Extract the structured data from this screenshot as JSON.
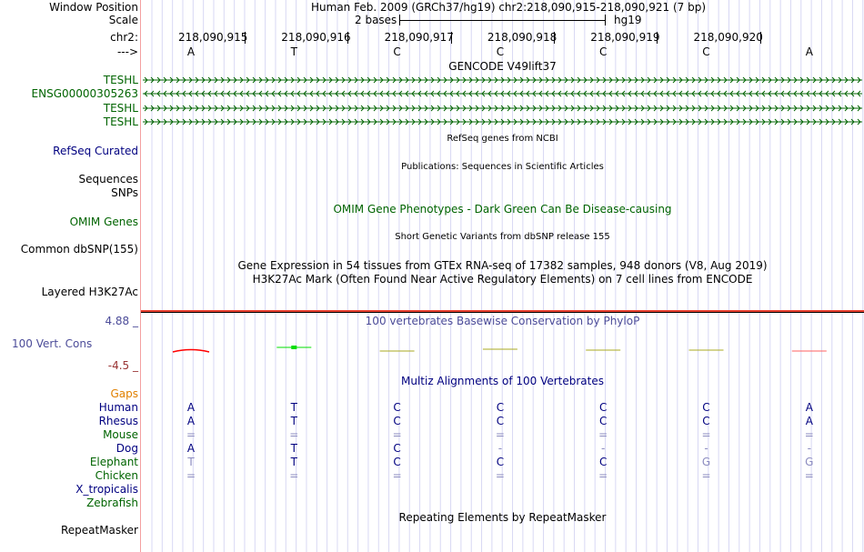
{
  "labels": {
    "window_position": "Window Position",
    "scale": "Scale",
    "chrom": "chr2:",
    "strand": "--->",
    "genes": [
      "TESHL",
      "ENSG00000305263",
      "TESHL",
      "TESHL"
    ],
    "refseq": "RefSeq Curated",
    "sequences": "Sequences",
    "snps": "SNPs",
    "omim": "OMIM Genes",
    "dbsnp": "Common dbSNP(155)",
    "h3k27ac": "Layered H3K27Ac",
    "cons_max": "4.88 _",
    "cons": "100 Vert. Cons",
    "cons_min": "-4.5 _",
    "gaps": "Gaps",
    "species": [
      "Human",
      "Rhesus",
      "Mouse",
      "Dog",
      "Elephant",
      "Chicken",
      "X_tropicalis",
      "Zebrafish"
    ],
    "repeatmasker": "RepeatMasker"
  },
  "header": {
    "title": "Human Feb. 2009 (GRCh37/hg19)   chr2:218,090,915-218,090,921 (7 bp)",
    "scale_text": "2 bases",
    "assembly": "hg19",
    "positions": [
      "218,090,915",
      "218,090,916",
      "218,090,917",
      "218,090,918",
      "218,090,919",
      "218,090,920"
    ],
    "bases": [
      "A",
      "T",
      "C",
      "C",
      "C",
      "C",
      "A"
    ]
  },
  "tracks": {
    "gencode": "GENCODE V49lift37",
    "refseq": "RefSeq genes from NCBI",
    "publications": "Publications: Sequences in Scientific Articles",
    "omim": "OMIM Gene Phenotypes - Dark Green Can Be Disease-causing",
    "dbsnp": "Short Genetic Variants from dbSNP release 155",
    "gtex": "Gene Expression in 54 tissues from GTEx RNA-seq of 17382 samples, 948 donors (V8, Aug 2019)",
    "h3k27ac": "H3K27Ac Mark (Often Found Near Active Regulatory Elements) on 7 cell lines from ENCODE",
    "phylop": "100 vertebrates Basewise Conservation by PhyloP",
    "multiz": "Multiz Alignments of 100 Vertebrates",
    "repeats": "Repeating Elements by RepeatMasker"
  },
  "gene_strands": [
    "+",
    "-",
    "+",
    "+"
  ],
  "phylop_colors": [
    "#ff0000",
    "#00dd00",
    "#aaaa20",
    "#aaaa20",
    "#aaaa20",
    "#aaaa20",
    "#ff6060"
  ],
  "alignment": [
    [
      "A",
      "T",
      "C",
      "C",
      "C",
      "C",
      "A"
    ],
    [
      "A",
      "T",
      "C",
      "C",
      "C",
      "C",
      "A"
    ],
    [
      "=",
      "=",
      "=",
      "=",
      "=",
      "=",
      "="
    ],
    [
      "A",
      "T",
      "C",
      "-",
      "-",
      "-",
      "-"
    ],
    [
      "T",
      "T",
      "C",
      "C",
      "C",
      "G",
      "G"
    ],
    [
      "=",
      "=",
      "=",
      "=",
      "=",
      "=",
      "="
    ],
    [],
    []
  ],
  "faded": [
    [],
    [],
    [
      0,
      1,
      2,
      3,
      4,
      5,
      6
    ],
    [
      3,
      4,
      5,
      6
    ],
    [
      0,
      5,
      6
    ],
    [
      0,
      1,
      2,
      3,
      4,
      5,
      6
    ],
    [],
    []
  ],
  "colors": {
    "blue_label": "#000080",
    "green_label": "#006400",
    "gaps": "#e08000",
    "cons": "#4c4c99",
    "cons_min": "#993333"
  }
}
